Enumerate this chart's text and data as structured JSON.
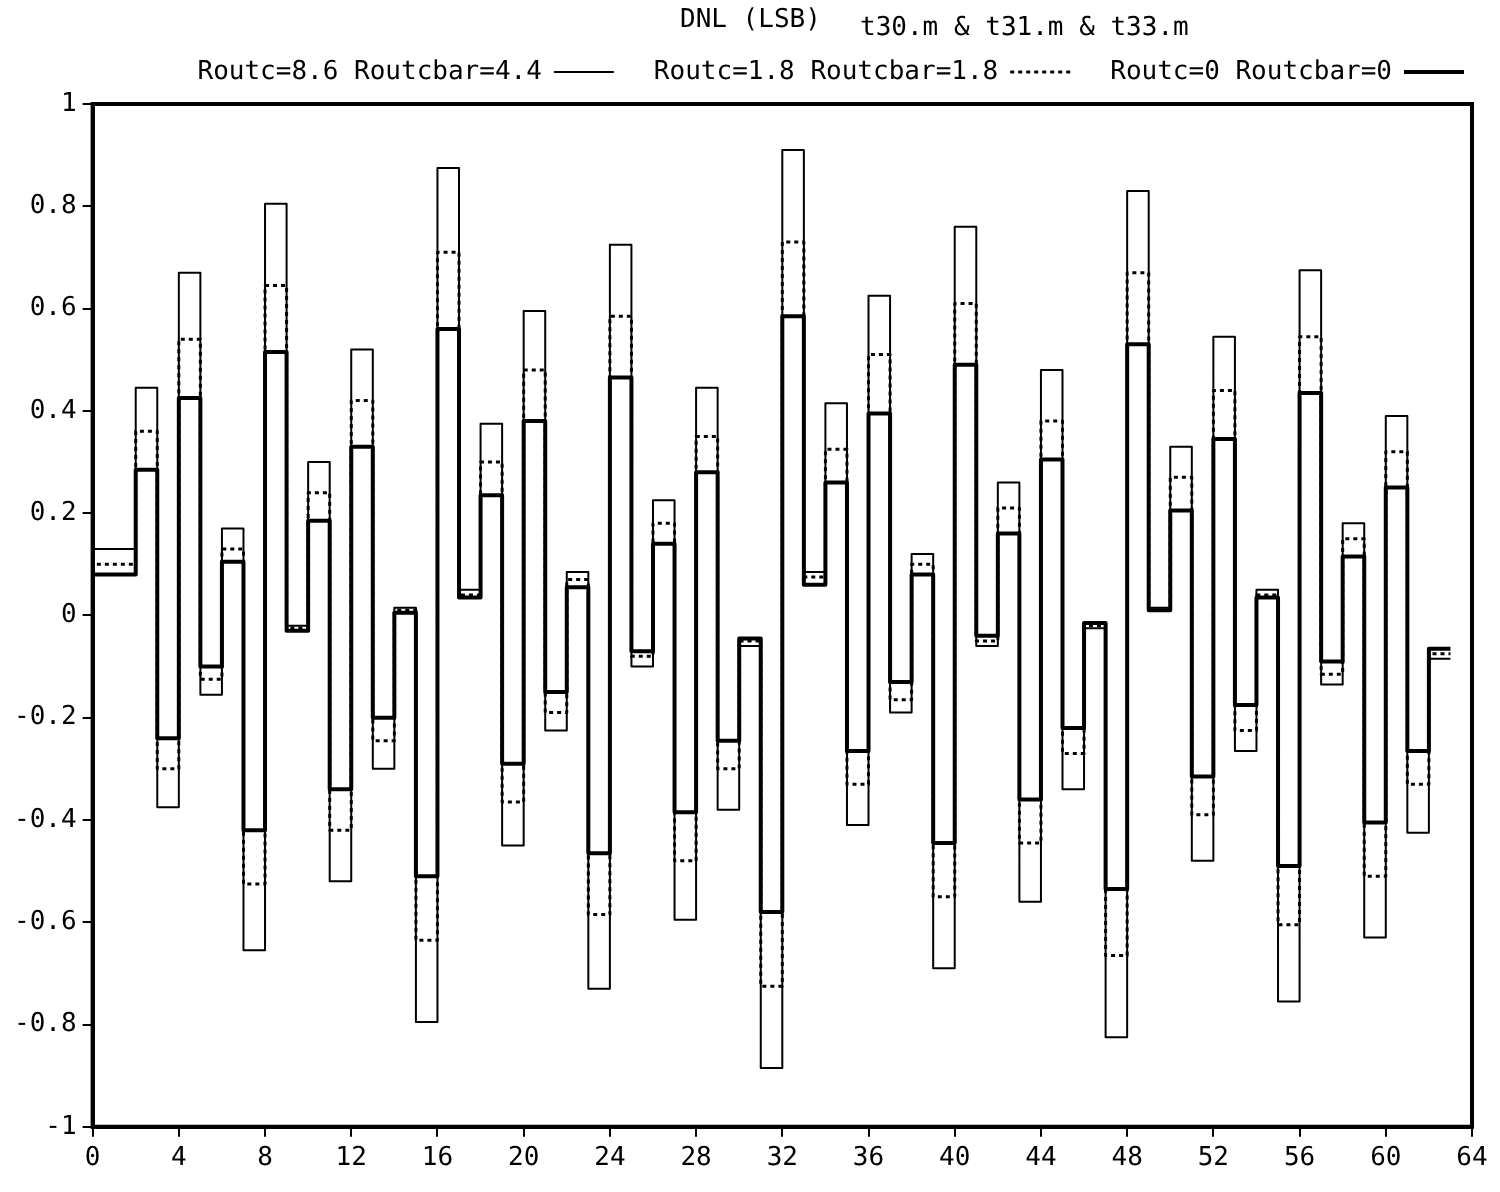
{
  "chart_data": {
    "type": "step",
    "ylabel": "DNL (LSB)",
    "title": "t30.m & t31.m & t33.m",
    "x": [
      0,
      2,
      3,
      4,
      5,
      6,
      7,
      8,
      9,
      10,
      11,
      12,
      13,
      14,
      15,
      16,
      17,
      18,
      19,
      20,
      21,
      22,
      23,
      24,
      25,
      26,
      27,
      28,
      29,
      30,
      31,
      32,
      33,
      34,
      35,
      36,
      37,
      38,
      39,
      40,
      41,
      42,
      43,
      44,
      45,
      46,
      47,
      48,
      49,
      50,
      51,
      52,
      53,
      54,
      55,
      56,
      57,
      58,
      59,
      60,
      61,
      62,
      63
    ],
    "xlim": [
      0,
      64
    ],
    "xticks": [
      0,
      4,
      8,
      12,
      16,
      20,
      24,
      28,
      32,
      36,
      40,
      44,
      48,
      52,
      56,
      60,
      64
    ],
    "ylim": [
      -1,
      1
    ],
    "yticks": [
      -1,
      -0.8,
      -0.6,
      -0.4,
      -0.2,
      0,
      0.2,
      0.4,
      0.6,
      0.8,
      1
    ],
    "legend": "top",
    "grid": false,
    "series": [
      {
        "name": "Routc=8.6 Routcbar=4.4",
        "color": "#000000",
        "line_style": "solid",
        "values": [
          0.955,
          0.13,
          0.445,
          -0.375,
          0.67,
          -0.155,
          0.17,
          -0.655,
          0.805,
          -0.02,
          0.3,
          -0.52,
          0.52,
          -0.3,
          0.015,
          -0.795,
          0.875,
          0.05,
          0.375,
          -0.45,
          0.595,
          -0.225,
          0.085,
          -0.73,
          0.725,
          -0.1,
          0.225,
          -0.595,
          0.445,
          -0.38,
          -0.06,
          -0.885,
          0.91,
          0.085,
          0.415,
          -0.41,
          0.625,
          -0.19,
          0.12,
          -0.69,
          0.76,
          -0.06,
          0.26,
          -0.56,
          0.48,
          -0.34,
          -0.025,
          -0.825,
          0.83,
          0.015,
          0.33,
          -0.48,
          0.545,
          -0.265,
          0.05,
          -0.755,
          0.675,
          -0.135,
          0.18,
          -0.63,
          0.39,
          -0.425,
          -0.085
        ]
      },
      {
        "name": "Routc=1.8 Routcbar=1.8",
        "color": "#000000",
        "line_style": "dotted",
        "values": [
          0.78,
          0.1,
          0.36,
          -0.3,
          0.54,
          -0.125,
          0.13,
          -0.525,
          0.645,
          -0.025,
          0.24,
          -0.42,
          0.42,
          -0.245,
          0.01,
          -0.635,
          0.71,
          0.04,
          0.3,
          -0.365,
          0.48,
          -0.19,
          0.07,
          -0.585,
          0.585,
          -0.08,
          0.18,
          -0.48,
          0.35,
          -0.3,
          -0.05,
          -0.725,
          0.73,
          0.075,
          0.325,
          -0.33,
          0.51,
          -0.165,
          0.1,
          -0.55,
          0.61,
          -0.05,
          0.21,
          -0.445,
          0.38,
          -0.27,
          -0.02,
          -0.665,
          0.67,
          0.01,
          0.27,
          -0.39,
          0.44,
          -0.225,
          0.04,
          -0.605,
          0.545,
          -0.115,
          0.15,
          -0.51,
          0.32,
          -0.33,
          -0.075
        ]
      },
      {
        "name": "Routc=0 Routcbar=0",
        "color": "#000000",
        "line_style": "solid",
        "values": [
          0.62,
          0.08,
          0.285,
          -0.24,
          0.425,
          -0.1,
          0.105,
          -0.42,
          0.515,
          -0.03,
          0.185,
          -0.34,
          0.33,
          -0.2,
          0.005,
          -0.51,
          0.56,
          0.035,
          0.235,
          -0.29,
          0.38,
          -0.15,
          0.055,
          -0.465,
          0.465,
          -0.07,
          0.14,
          -0.385,
          0.28,
          -0.245,
          -0.045,
          -0.58,
          0.585,
          0.06,
          0.26,
          -0.265,
          0.395,
          -0.13,
          0.08,
          -0.445,
          0.49,
          -0.04,
          0.16,
          -0.36,
          0.305,
          -0.22,
          -0.015,
          -0.535,
          0.53,
          0.01,
          0.205,
          -0.315,
          0.345,
          -0.175,
          0.035,
          -0.49,
          0.435,
          -0.09,
          0.115,
          -0.405,
          0.25,
          -0.265,
          -0.065
        ]
      }
    ]
  }
}
